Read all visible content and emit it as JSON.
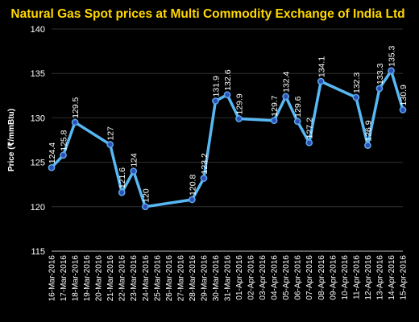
{
  "chart_data": {
    "type": "line",
    "title": "Natural Gas Spot prices at Multi Commodity Exchange of India Ltd",
    "ylabel": "Price (₹/mmBtu)",
    "xlabel": "",
    "ylim": [
      115,
      140
    ],
    "yticks": [
      115,
      120,
      125,
      130,
      135,
      140
    ],
    "grid": true,
    "categories": [
      "16-Mar-2016",
      "17-Mar-2016",
      "18-Mar-2016",
      "19-Mar-2016",
      "20-Mar-2016",
      "21-Mar-2016",
      "22-Mar-2016",
      "23-Mar-2016",
      "24-Mar-2016",
      "25-Mar-2016",
      "26-Mar-2016",
      "27-Mar-2016",
      "28-Mar-2016",
      "29-Mar-2016",
      "30-Mar-2016",
      "31-Mar-2016",
      "01-Apr-2016",
      "02-Apr-2016",
      "03-Apr-2016",
      "04-Apr-2016",
      "05-Apr-2016",
      "06-Apr-2016",
      "07-Apr-2016",
      "08-Apr-2016",
      "09-Apr-2016",
      "10-Apr-2016",
      "11-Apr-2016",
      "12-Apr-2016",
      "13-Apr-2016",
      "14-Apr-2016",
      "15-Apr-2016"
    ],
    "series": [
      {
        "points": [
          {
            "x": "16-Mar-2016",
            "y": 124.4,
            "label": "124.4"
          },
          {
            "x": "17-Mar-2016",
            "y": 125.8,
            "label": "125.8"
          },
          {
            "x": "18-Mar-2016",
            "y": 129.5,
            "label": "129.5"
          },
          {
            "x": "21-Mar-2016",
            "y": 127,
            "label": "127"
          },
          {
            "x": "22-Mar-2016",
            "y": 121.6,
            "label": "121.6"
          },
          {
            "x": "23-Mar-2016",
            "y": 124,
            "label": "124"
          },
          {
            "x": "24-Mar-2016",
            "y": 120,
            "label": "120"
          },
          {
            "x": "28-Mar-2016",
            "y": 120.8,
            "label": "120.8"
          },
          {
            "x": "29-Mar-2016",
            "y": 123.2,
            "label": "123.2"
          },
          {
            "x": "30-Mar-2016",
            "y": 131.9,
            "label": "131.9"
          },
          {
            "x": "31-Mar-2016",
            "y": 132.6,
            "label": "132.6"
          },
          {
            "x": "01-Apr-2016",
            "y": 129.9,
            "label": "129.9"
          },
          {
            "x": "04-Apr-2016",
            "y": 129.7,
            "label": "129.7"
          },
          {
            "x": "05-Apr-2016",
            "y": 132.4,
            "label": "132.4"
          },
          {
            "x": "06-Apr-2016",
            "y": 129.6,
            "label": "129.6"
          },
          {
            "x": "07-Apr-2016",
            "y": 127.2,
            "label": "127.2"
          },
          {
            "x": "08-Apr-2016",
            "y": 134.1,
            "label": "134.1"
          },
          {
            "x": "11-Apr-2016",
            "y": 132.3,
            "label": "132.3"
          },
          {
            "x": "12-Apr-2016",
            "y": 126.9,
            "label": "126.9"
          },
          {
            "x": "13-Apr-2016",
            "y": 133.3,
            "label": "133.3"
          },
          {
            "x": "14-Apr-2016",
            "y": 135.3,
            "label": "135.3"
          },
          {
            "x": "15-Apr-2016",
            "y": 130.9,
            "label": "130.9"
          }
        ]
      }
    ],
    "colors": {
      "line": "#58b8f4",
      "marker": "#2d4fb8",
      "title": "#ffd700",
      "background": "#000000"
    }
  }
}
